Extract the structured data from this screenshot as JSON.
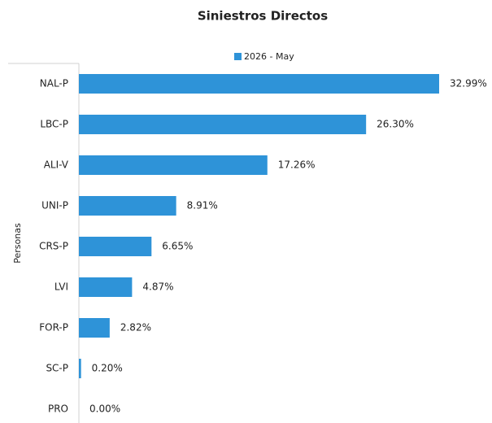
{
  "chart_data": {
    "type": "bar",
    "orientation": "horizontal",
    "title": "Siniestros Directos",
    "y_group_label": "Personas",
    "categories": [
      "NAL-P",
      "LBC-P",
      "ALI-V",
      "UNI-P",
      "CRS-P",
      "LVI",
      "FOR-P",
      "SC-P",
      "PRO"
    ],
    "series": [
      {
        "name": "2026 - May",
        "color": "#2e93d8",
        "values": [
          32.99,
          26.3,
          17.26,
          8.91,
          6.65,
          4.87,
          2.82,
          0.2,
          0.0
        ],
        "value_labels": [
          "32.99%",
          "26.30%",
          "17.26%",
          "8.91%",
          "6.65%",
          "4.87%",
          "2.82%",
          "0.20%",
          "0.00%"
        ]
      }
    ],
    "xlim": [
      0,
      35
    ],
    "legend": "top"
  }
}
